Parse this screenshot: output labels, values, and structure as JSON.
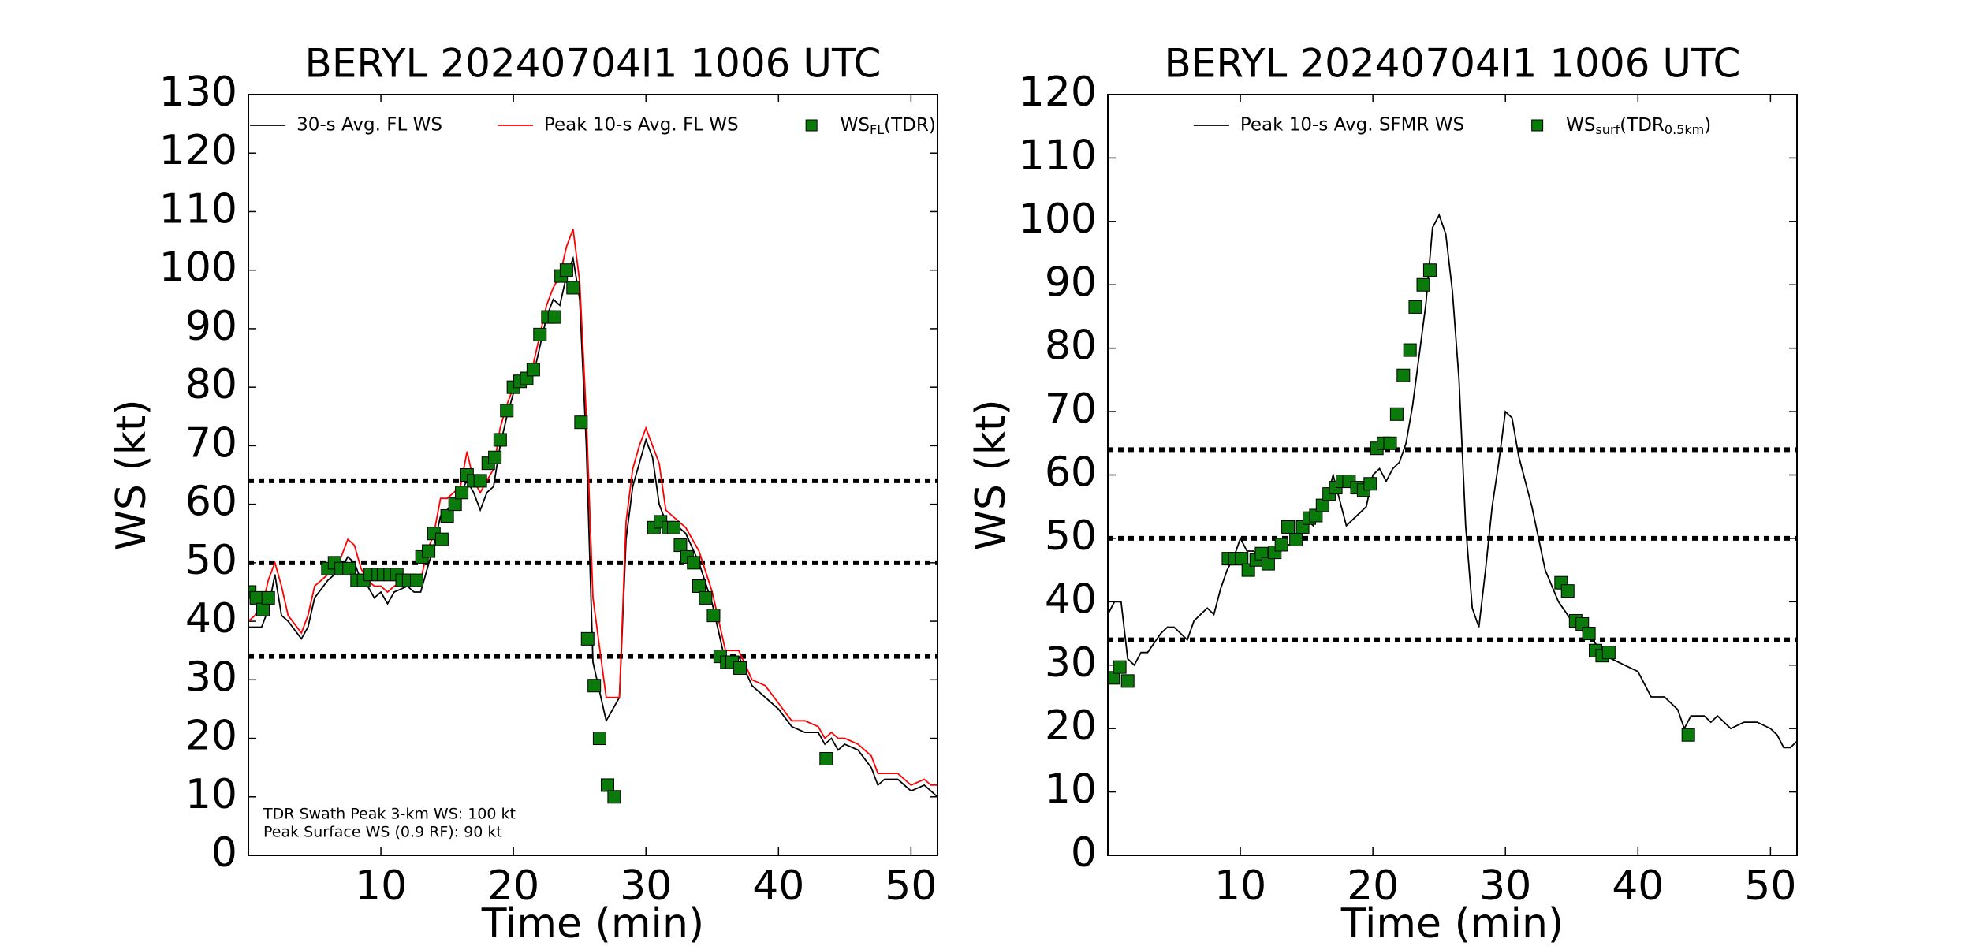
{
  "chart_data": [
    {
      "type": "line",
      "title": "BERYL 20240704I1 1006 UTC",
      "xlabel": "Time (min)",
      "ylabel": "WS (kt)",
      "xlim": [
        0,
        52
      ],
      "ylim": [
        0,
        130
      ],
      "xticks": [
        10,
        20,
        30,
        40,
        50
      ],
      "yticks": [
        0,
        10,
        20,
        30,
        40,
        50,
        60,
        70,
        80,
        90,
        100,
        110,
        120,
        130
      ],
      "hlines": [
        34,
        50,
        64
      ],
      "hline_color": "#000000",
      "annotations": [
        "TDR Swath Peak 3-km WS: 100 kt",
        "Peak Surface WS (0.9 RF): 90 kt"
      ],
      "series": [
        {
          "name": "30-s Avg. FL WS",
          "type": "line",
          "color": "#000000",
          "x": [
            0,
            1,
            1.5,
            2,
            2.5,
            3,
            4,
            4.5,
            5,
            6,
            7,
            7.5,
            8,
            8.5,
            9,
            9.5,
            10,
            10.5,
            11,
            12,
            12.5,
            13,
            13.5,
            14,
            14.5,
            15,
            16,
            16.5,
            17,
            17.5,
            18,
            18.5,
            19,
            19.5,
            20,
            20.5,
            21,
            21.5,
            22,
            22.5,
            23,
            23.5,
            24,
            24.5,
            25,
            25.5,
            26,
            27,
            28,
            28.5,
            29,
            29.5,
            30,
            30.5,
            31,
            31.5,
            32,
            33,
            34,
            35,
            36,
            37,
            38,
            39,
            40,
            41,
            42,
            43,
            43.5,
            44,
            44.5,
            45,
            46,
            47,
            47.5,
            48,
            49,
            50,
            51,
            51.5,
            52
          ],
          "values": [
            39,
            39,
            42,
            48,
            41,
            40,
            37,
            39,
            44,
            47,
            49,
            51,
            50,
            47,
            46,
            44,
            45,
            43,
            45,
            46,
            45,
            45,
            49,
            53,
            58,
            59,
            62,
            64,
            62,
            59,
            62,
            63,
            70,
            75,
            79,
            80,
            81,
            82,
            87,
            92,
            95,
            94,
            99,
            102,
            95,
            70,
            33,
            23,
            27,
            54,
            63,
            67,
            71,
            68,
            60,
            57,
            57,
            55,
            50,
            43,
            33,
            34,
            29,
            27,
            25,
            22,
            21,
            21,
            19,
            20,
            18,
            19,
            18,
            15,
            12,
            13,
            13,
            11,
            12,
            11,
            10
          ]
        },
        {
          "name": "Peak 10-s Avg. FL WS",
          "type": "line",
          "color": "#ff0000",
          "x": [
            0,
            1,
            1.5,
            2,
            2.5,
            3,
            4,
            4.5,
            5,
            6,
            7,
            7.5,
            8,
            8.5,
            9,
            9.5,
            10,
            10.5,
            11,
            12,
            12.5,
            13,
            13.5,
            14,
            14.5,
            15,
            16,
            16.5,
            17,
            17.5,
            18,
            18.5,
            19,
            19.5,
            20,
            20.5,
            21,
            21.5,
            22,
            22.5,
            23,
            23.5,
            24,
            24.5,
            25,
            25.5,
            26,
            27,
            28,
            28.5,
            29,
            29.5,
            30,
            30.5,
            31,
            31.5,
            32,
            33,
            34,
            35,
            36,
            37,
            38,
            39,
            40,
            41,
            42,
            43,
            43.5,
            44,
            44.5,
            45,
            46,
            47,
            47.5,
            48,
            49,
            50,
            51,
            51.5,
            52
          ],
          "values": [
            40,
            42,
            47,
            50,
            46,
            41,
            38,
            41,
            46,
            48,
            51,
            54,
            53,
            49,
            47,
            46,
            46,
            45,
            46,
            47,
            46,
            47,
            52,
            55,
            61,
            61,
            63,
            69,
            64,
            62,
            64,
            66,
            73,
            77,
            80,
            82,
            82,
            84,
            89,
            94,
            97,
            99,
            104,
            107,
            98,
            75,
            44,
            27,
            27,
            57,
            66,
            70,
            73,
            70,
            67,
            59,
            58,
            56,
            52,
            45,
            35,
            35,
            30,
            29,
            26,
            23,
            23,
            22,
            20,
            21,
            20,
            20,
            19,
            17,
            14,
            14,
            14,
            12,
            13,
            12,
            12
          ]
        },
        {
          "name_parts": [
            {
              "text": "WS"
            },
            {
              "text": "FL",
              "sub": true
            },
            {
              "text": "(TDR)"
            }
          ],
          "type": "scatter",
          "color": "#0a7a0a",
          "x": [
            0.1,
            0.6,
            1.1,
            1.5,
            6,
            6.5,
            7,
            7.6,
            8.2,
            8.7,
            9.2,
            9.8,
            10.2,
            10.7,
            11.2,
            11.6,
            12.1,
            12.7,
            13.1,
            13.6,
            14,
            14.6,
            15,
            15.6,
            16.1,
            16.5,
            17,
            17.5,
            18.1,
            18.6,
            19,
            19.5,
            20,
            20.5,
            21,
            21.5,
            22,
            22.6,
            23.1,
            23.6,
            24,
            24.5,
            25.1,
            25.6,
            26.1,
            26.5,
            27.1,
            27.6,
            30.6,
            31.1,
            31.7,
            32.1,
            32.6,
            33.1,
            33.6,
            34,
            34.5,
            35.1,
            35.6,
            36.1,
            36.5,
            37.1,
            43.6
          ],
          "values": [
            45,
            44,
            42,
            44,
            49,
            50,
            49,
            49,
            47,
            47,
            48,
            48,
            48,
            48,
            48,
            47,
            47,
            47,
            51,
            52,
            55,
            54,
            58,
            60,
            62,
            65,
            64,
            64,
            67,
            68,
            71,
            76,
            80,
            81,
            81.5,
            83,
            89,
            92,
            92,
            99,
            100,
            97,
            74,
            37,
            29,
            20,
            12,
            10,
            56,
            57,
            56,
            56,
            53,
            51,
            50,
            46,
            44,
            41,
            34,
            33,
            33,
            32,
            16.5
          ]
        }
      ]
    },
    {
      "type": "line",
      "title": "BERYL 20240704I1 1006 UTC",
      "xlabel": "Time (min)",
      "ylabel": "WS (kt)",
      "xlim": [
        0,
        52
      ],
      "ylim": [
        0,
        120
      ],
      "xticks": [
        10,
        20,
        30,
        40,
        50
      ],
      "yticks": [
        0,
        10,
        20,
        30,
        40,
        50,
        60,
        70,
        80,
        90,
        100,
        110,
        120
      ],
      "hlines": [
        34,
        50,
        64
      ],
      "hline_color": "#000000",
      "series": [
        {
          "name": "Peak 10-s Avg. SFMR WS",
          "type": "line",
          "color": "#000000",
          "x": [
            0,
            0.5,
            1,
            1.5,
            2,
            2.5,
            3,
            4,
            4.5,
            5,
            6,
            6.5,
            7,
            7.5,
            8,
            8.5,
            9,
            9.5,
            10,
            10.5,
            11,
            11.5,
            12,
            12.5,
            13,
            13.5,
            14,
            14.5,
            15,
            15.5,
            16,
            16.5,
            17,
            17.5,
            18,
            18.5,
            19,
            19.5,
            20,
            20.5,
            21,
            21.5,
            22,
            22.5,
            23,
            23.5,
            24,
            24.5,
            25,
            25.5,
            26,
            26.5,
            27,
            27.5,
            28,
            28.5,
            29,
            29.5,
            30,
            30.5,
            31,
            32,
            33,
            34,
            35,
            36,
            37,
            38,
            39,
            40,
            40.5,
            41,
            42,
            43,
            43.5,
            44,
            45,
            45.5,
            46,
            47,
            48,
            49,
            50,
            50.5,
            51,
            51.5,
            52
          ],
          "values": [
            38,
            40,
            40,
            31,
            30,
            32,
            32,
            35,
            36,
            36,
            34,
            37,
            38,
            39,
            38,
            42,
            45,
            47,
            50,
            48,
            48,
            47,
            47,
            48,
            48,
            49,
            49,
            51,
            53,
            52,
            54,
            56,
            60,
            56,
            52,
            53,
            54,
            55,
            60,
            61,
            59,
            61,
            62,
            65,
            71,
            79,
            87,
            99,
            101,
            98,
            89,
            75,
            52,
            39,
            36,
            45,
            55,
            62,
            70,
            69,
            63,
            55,
            45,
            40,
            37,
            35,
            33,
            31,
            30,
            29,
            27,
            25,
            25,
            23,
            20,
            22,
            22,
            21,
            22,
            20,
            21,
            21,
            20,
            19,
            17,
            17,
            18
          ]
        },
        {
          "name_parts": [
            {
              "text": "WS"
            },
            {
              "text": "surf",
              "sub": true
            },
            {
              "text": "(TDR"
            },
            {
              "text": "0.5km",
              "sub": true
            },
            {
              "text": ")"
            }
          ],
          "type": "scatter",
          "color": "#0a7a0a",
          "x": [
            0.4,
            0.9,
            1.5,
            9.1,
            9.6,
            10.1,
            10.6,
            11.2,
            11.6,
            12.1,
            12.6,
            13.1,
            13.6,
            14.2,
            14.7,
            15.2,
            15.7,
            16.2,
            16.7,
            17.2,
            17.7,
            18.2,
            18.8,
            19.3,
            19.8,
            20.3,
            20.8,
            21.3,
            21.8,
            22.3,
            22.8,
            23.2,
            23.8,
            24.3,
            34.2,
            34.7,
            35.3,
            35.8,
            36.3,
            36.8,
            37.3,
            37.8,
            43.8
          ],
          "values": [
            28,
            29.7,
            27.5,
            46.8,
            46.8,
            46.8,
            45,
            46.6,
            47.6,
            46,
            47.8,
            49,
            51.8,
            49.8,
            51.8,
            53.2,
            53.6,
            55.2,
            57,
            58,
            59,
            59,
            58,
            57.6,
            58.6,
            64.2,
            65,
            65,
            69.6,
            75.7,
            79.7,
            86.5,
            90,
            92.3,
            43,
            41.7,
            37,
            36.5,
            35,
            32.3,
            31.5,
            32,
            19
          ]
        }
      ]
    }
  ]
}
